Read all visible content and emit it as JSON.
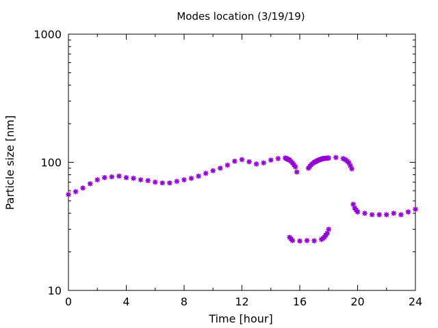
{
  "chart_data": {
    "type": "scatter",
    "title": "Modes location (3/19/19)",
    "xlabel": "Time [hour]",
    "ylabel": "Particle size [nm]",
    "xlim": [
      0,
      24
    ],
    "ylim": [
      10,
      1000
    ],
    "yscale": "log",
    "x_ticks": [
      0,
      4,
      8,
      12,
      16,
      20,
      24
    ],
    "x_tick_labels": [
      "0",
      "4",
      "8",
      "12",
      "16",
      "20",
      "24"
    ],
    "y_ticks": [
      10,
      100,
      1000
    ],
    "y_tick_labels": [
      "10",
      "100",
      "1000"
    ],
    "grid": false,
    "marker_color": "#9400d3",
    "series": [
      {
        "values": [
          [
            0.0,
            56
          ],
          [
            0.5,
            59
          ],
          [
            1.0,
            63
          ],
          [
            1.5,
            68
          ],
          [
            2.0,
            73
          ],
          [
            2.5,
            76
          ],
          [
            3.0,
            77
          ],
          [
            3.5,
            78
          ],
          [
            4.0,
            76
          ],
          [
            4.5,
            75
          ],
          [
            5.0,
            73
          ],
          [
            5.5,
            72
          ],
          [
            6.0,
            70
          ],
          [
            6.5,
            69
          ],
          [
            7.0,
            69
          ],
          [
            7.5,
            71
          ],
          [
            8.0,
            73
          ],
          [
            8.5,
            75
          ],
          [
            9.0,
            78
          ],
          [
            9.5,
            82
          ],
          [
            10.0,
            86
          ],
          [
            10.5,
            90
          ],
          [
            11.0,
            95
          ],
          [
            11.5,
            102
          ],
          [
            12.0,
            105
          ],
          [
            12.5,
            101
          ],
          [
            13.0,
            97
          ],
          [
            13.5,
            99
          ],
          [
            14.0,
            104
          ],
          [
            14.5,
            107
          ],
          [
            15.0,
            108
          ],
          [
            15.3,
            104
          ],
          [
            15.5,
            99
          ],
          [
            15.7,
            92
          ],
          [
            15.8,
            84
          ],
          [
            16.6,
            90
          ],
          [
            16.8,
            96
          ],
          [
            17.0,
            100
          ],
          [
            17.3,
            104
          ],
          [
            17.6,
            107
          ],
          [
            18.0,
            108
          ],
          [
            18.5,
            109
          ],
          [
            19.0,
            107
          ],
          [
            19.2,
            104
          ],
          [
            19.4,
            99
          ],
          [
            19.5,
            94
          ],
          [
            19.6,
            89
          ]
        ]
      },
      {
        "values": [
          [
            15.3,
            26
          ],
          [
            15.5,
            24.5
          ],
          [
            16.0,
            24.3
          ],
          [
            16.5,
            24.5
          ],
          [
            17.0,
            24.4
          ],
          [
            17.5,
            25
          ],
          [
            17.7,
            26
          ],
          [
            17.9,
            28
          ],
          [
            18.0,
            30
          ],
          [
            19.7,
            47
          ],
          [
            19.8,
            44
          ],
          [
            20.0,
            41
          ],
          [
            20.5,
            40
          ],
          [
            21.0,
            39
          ],
          [
            21.5,
            39
          ],
          [
            22.0,
            39
          ],
          [
            22.5,
            40
          ],
          [
            23.0,
            39
          ],
          [
            23.5,
            41
          ],
          [
            24.0,
            43
          ]
        ]
      }
    ]
  }
}
